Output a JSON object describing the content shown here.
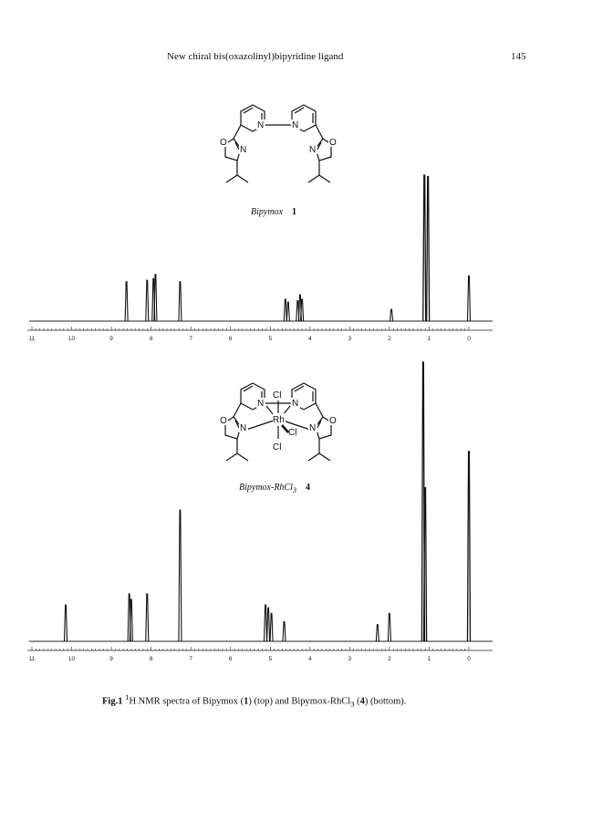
{
  "header": {
    "running_title": "New chiral bis(oxazolinyl)bipyridine ligand",
    "page_number": "145"
  },
  "compounds": {
    "top": {
      "name": "Bipymox",
      "number": "1"
    },
    "bottom": {
      "name": "Bipymox-RhCl",
      "name_sub": "3",
      "number": "4"
    }
  },
  "structure_atoms": {
    "pyridine_n": "N",
    "ring_o": "O",
    "oxazoline_n": "N",
    "metal": "Rh",
    "chloride": "Cl"
  },
  "caption": {
    "fig_label": "Fig.1",
    "text_1": "H NMR spectra of Bipymox (",
    "compound_1": "1",
    "text_2": ") (top) and Bipymox-RhCl",
    "sub": "3",
    "text_3": " (",
    "compound_2": "4",
    "text_4": ") (bottom).",
    "superscript": "1"
  },
  "chart_data": [
    {
      "type": "line",
      "xlim": [
        11,
        0
      ],
      "x_ticks": [
        11,
        10,
        9,
        8,
        7,
        6,
        5,
        4,
        3,
        2,
        1,
        0
      ],
      "tick_labels": [
        "11",
        "10",
        "9",
        "8",
        "7",
        "6",
        "5",
        "4",
        "3",
        "2",
        "1",
        "0"
      ],
      "peaks_ppm": [
        {
          "ppm": 8.62,
          "rel_height": 0.27
        },
        {
          "ppm": 8.1,
          "rel_height": 0.28
        },
        {
          "ppm": 7.94,
          "rel_height": 0.29
        },
        {
          "ppm": 7.89,
          "rel_height": 0.32
        },
        {
          "ppm": 7.27,
          "rel_height": 0.27
        },
        {
          "ppm": 4.62,
          "rel_height": 0.15
        },
        {
          "ppm": 4.55,
          "rel_height": 0.13
        },
        {
          "ppm": 4.31,
          "rel_height": 0.14
        },
        {
          "ppm": 4.25,
          "rel_height": 0.18
        },
        {
          "ppm": 4.2,
          "rel_height": 0.15
        },
        {
          "ppm": 1.95,
          "rel_height": 0.08
        },
        {
          "ppm": 1.12,
          "rel_height": 1.0
        },
        {
          "ppm": 1.03,
          "rel_height": 0.99
        },
        {
          "ppm": 0.0,
          "rel_height": 0.31
        }
      ]
    },
    {
      "type": "line",
      "xlim": [
        11,
        0
      ],
      "x_ticks": [
        11,
        10,
        9,
        8,
        7,
        6,
        5,
        4,
        3,
        2,
        1,
        0
      ],
      "tick_labels": [
        "11",
        "10",
        "9",
        "8",
        "7",
        "6",
        "5",
        "4",
        "3",
        "2",
        "1",
        "0"
      ],
      "peaks_ppm": [
        {
          "ppm": 10.15,
          "rel_height": 0.13
        },
        {
          "ppm": 8.55,
          "rel_height": 0.17
        },
        {
          "ppm": 8.5,
          "rel_height": 0.15
        },
        {
          "ppm": 8.1,
          "rel_height": 0.17
        },
        {
          "ppm": 7.27,
          "rel_height": 0.47
        },
        {
          "ppm": 5.12,
          "rel_height": 0.13
        },
        {
          "ppm": 5.05,
          "rel_height": 0.12
        },
        {
          "ppm": 4.97,
          "rel_height": 0.1
        },
        {
          "ppm": 4.65,
          "rel_height": 0.07
        },
        {
          "ppm": 2.3,
          "rel_height": 0.06
        },
        {
          "ppm": 2.0,
          "rel_height": 0.1
        },
        {
          "ppm": 1.15,
          "rel_height": 1.0
        },
        {
          "ppm": 1.1,
          "rel_height": 0.55
        },
        {
          "ppm": 0.0,
          "rel_height": 0.68
        }
      ]
    }
  ]
}
